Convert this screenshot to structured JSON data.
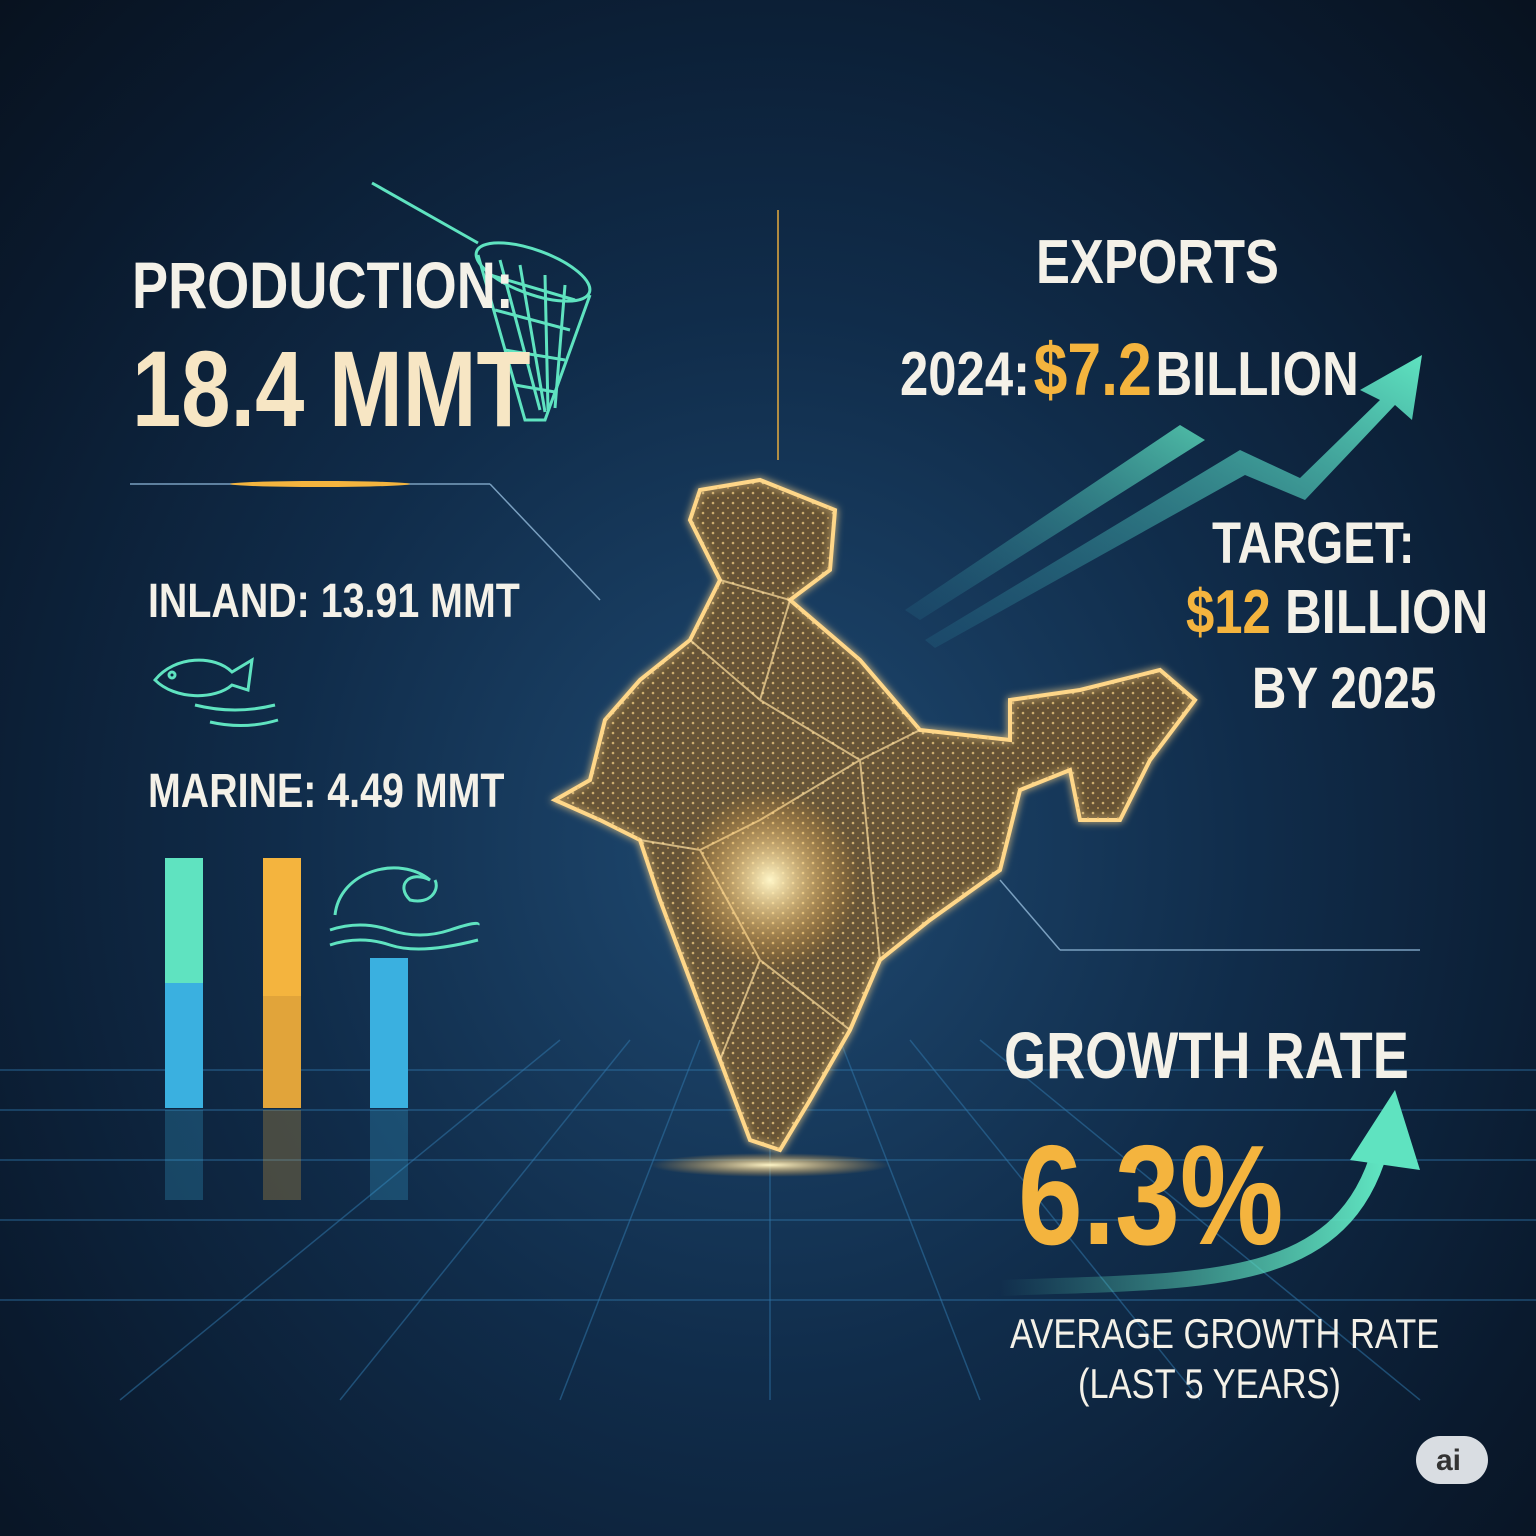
{
  "production": {
    "label": "PRODUCTION:",
    "value": "18.4 MMT",
    "inland": "INLAND: 13.91 MMT",
    "marine": "MARINE: 4.49 MMT"
  },
  "exports": {
    "title": "EXPORTS",
    "year": "2024:",
    "amount": "$7.2",
    "unit": "BILLION",
    "target_label": "TARGET:",
    "target_amount": "$12",
    "target_unit": "BILLION",
    "target_year": "BY 2025"
  },
  "growth": {
    "title": "GROWTH RATE",
    "value": "6.3%",
    "caption_1": "AVERAGE GROWTH RATE",
    "caption_2": "(LAST 5 YEARS)"
  },
  "badge": "ai"
}
